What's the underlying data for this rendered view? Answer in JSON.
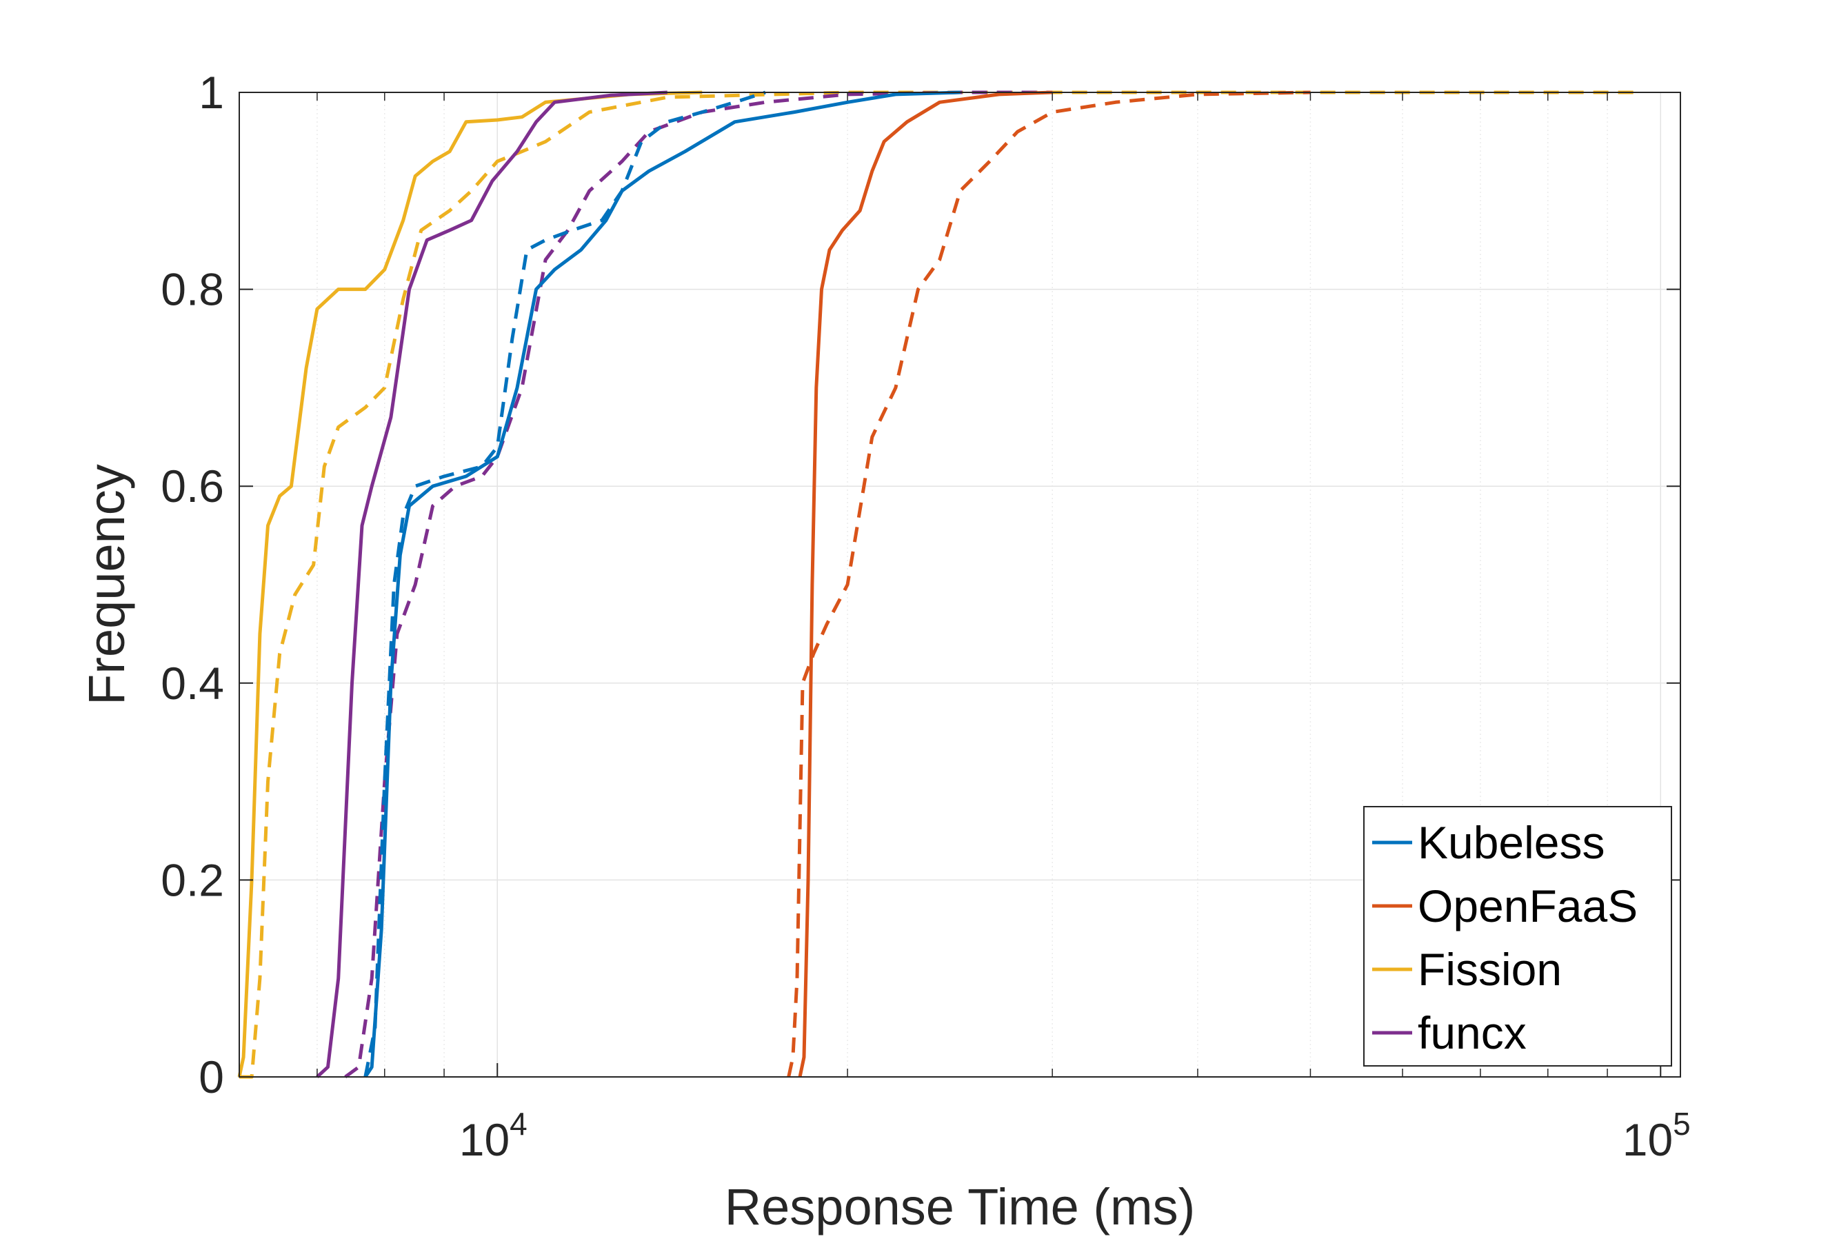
{
  "chart_data": {
    "type": "line",
    "title": "",
    "xlabel": "Response Time (ms)",
    "ylabel": "Frequency",
    "xscale": "log",
    "xlim": [
      6000,
      104000
    ],
    "ylim": [
      0,
      1
    ],
    "grid": true,
    "legend_position": "bottom-right",
    "x_ticks": [
      {
        "value": 10000,
        "base": "10",
        "exp": "4"
      },
      {
        "value": 100000,
        "base": "10",
        "exp": "5"
      }
    ],
    "y_ticks": [
      {
        "value": 0,
        "label": "0"
      },
      {
        "value": 0.2,
        "label": "0.2"
      },
      {
        "value": 0.4,
        "label": "0.4"
      },
      {
        "value": 0.6,
        "label": "0.6"
      },
      {
        "value": 0.8,
        "label": "0.8"
      },
      {
        "value": 1,
        "label": "1"
      }
    ],
    "legend": [
      {
        "name": "Kubeless",
        "color": "#0072BD"
      },
      {
        "name": "OpenFaaS",
        "color": "#D95319"
      },
      {
        "name": "Fission",
        "color": "#EDB120"
      },
      {
        "name": "funcx",
        "color": "#7E2F8E"
      }
    ],
    "series": [
      {
        "name": "Fission",
        "style": "solid",
        "color": "#EDB120",
        "points": [
          [
            6000,
            0
          ],
          [
            6050,
            0.02
          ],
          [
            6150,
            0.2
          ],
          [
            6250,
            0.45
          ],
          [
            6350,
            0.56
          ],
          [
            6500,
            0.59
          ],
          [
            6650,
            0.6
          ],
          [
            6850,
            0.72
          ],
          [
            7000,
            0.78
          ],
          [
            7300,
            0.8
          ],
          [
            7700,
            0.8
          ],
          [
            8000,
            0.82
          ],
          [
            8300,
            0.87
          ],
          [
            8500,
            0.915
          ],
          [
            8800,
            0.93
          ],
          [
            9100,
            0.94
          ],
          [
            9400,
            0.97
          ],
          [
            10000,
            0.972
          ],
          [
            10500,
            0.975
          ],
          [
            11000,
            0.99
          ],
          [
            13000,
            0.998
          ],
          [
            15000,
            1
          ]
        ]
      },
      {
        "name": "Fission",
        "style": "dashed",
        "color": "#EDB120",
        "points": [
          [
            6000,
            0
          ],
          [
            6150,
            0
          ],
          [
            6250,
            0.1
          ],
          [
            6350,
            0.3
          ],
          [
            6500,
            0.43
          ],
          [
            6700,
            0.49
          ],
          [
            6950,
            0.52
          ],
          [
            7100,
            0.62
          ],
          [
            7300,
            0.66
          ],
          [
            7700,
            0.68
          ],
          [
            8000,
            0.7
          ],
          [
            8300,
            0.79
          ],
          [
            8600,
            0.86
          ],
          [
            9100,
            0.88
          ],
          [
            9500,
            0.9
          ],
          [
            10000,
            0.93
          ],
          [
            10500,
            0.94
          ],
          [
            11000,
            0.95
          ],
          [
            12000,
            0.98
          ],
          [
            14000,
            0.995
          ],
          [
            20000,
            1
          ],
          [
            70000,
            1
          ],
          [
            95000,
            1
          ]
        ]
      },
      {
        "name": "funcx",
        "style": "solid",
        "color": "#7E2F8E",
        "points": [
          [
            7000,
            0
          ],
          [
            7150,
            0.01
          ],
          [
            7300,
            0.1
          ],
          [
            7500,
            0.4
          ],
          [
            7650,
            0.56
          ],
          [
            7800,
            0.6
          ],
          [
            8100,
            0.67
          ],
          [
            8400,
            0.8
          ],
          [
            8700,
            0.85
          ],
          [
            9100,
            0.86
          ],
          [
            9500,
            0.87
          ],
          [
            9900,
            0.91
          ],
          [
            10400,
            0.94
          ],
          [
            10800,
            0.97
          ],
          [
            11200,
            0.99
          ],
          [
            12500,
            0.997
          ],
          [
            14000,
            1
          ]
        ]
      },
      {
        "name": "funcx",
        "style": "dashed",
        "color": "#7E2F8E",
        "points": [
          [
            7400,
            0
          ],
          [
            7600,
            0.01
          ],
          [
            7800,
            0.1
          ],
          [
            8000,
            0.3
          ],
          [
            8200,
            0.45
          ],
          [
            8500,
            0.5
          ],
          [
            8800,
            0.58
          ],
          [
            9200,
            0.6
          ],
          [
            9700,
            0.61
          ],
          [
            10000,
            0.63
          ],
          [
            10500,
            0.7
          ],
          [
            11000,
            0.83
          ],
          [
            11500,
            0.86
          ],
          [
            12000,
            0.9
          ],
          [
            12800,
            0.93
          ],
          [
            13500,
            0.96
          ],
          [
            15000,
            0.98
          ],
          [
            17000,
            0.99
          ],
          [
            20000,
            0.998
          ],
          [
            25000,
            1
          ],
          [
            30000,
            1
          ]
        ]
      },
      {
        "name": "Kubeless",
        "style": "solid",
        "color": "#0072BD",
        "points": [
          [
            7700,
            0
          ],
          [
            7800,
            0.01
          ],
          [
            7950,
            0.15
          ],
          [
            8100,
            0.4
          ],
          [
            8250,
            0.53
          ],
          [
            8400,
            0.58
          ],
          [
            8800,
            0.6
          ],
          [
            9400,
            0.61
          ],
          [
            10000,
            0.63
          ],
          [
            10400,
            0.7
          ],
          [
            10800,
            0.8
          ],
          [
            11200,
            0.82
          ],
          [
            11800,
            0.84
          ],
          [
            12400,
            0.87
          ],
          [
            12800,
            0.9
          ],
          [
            13500,
            0.92
          ],
          [
            14500,
            0.94
          ],
          [
            16000,
            0.97
          ],
          [
            18000,
            0.98
          ],
          [
            20000,
            0.99
          ],
          [
            22000,
            0.998
          ],
          [
            25000,
            1
          ]
        ]
      },
      {
        "name": "Kubeless",
        "style": "dashed",
        "color": "#0072BD",
        "points": [
          [
            7700,
            0
          ],
          [
            7850,
            0.05
          ],
          [
            8000,
            0.3
          ],
          [
            8150,
            0.5
          ],
          [
            8300,
            0.57
          ],
          [
            8500,
            0.6
          ],
          [
            9000,
            0.61
          ],
          [
            9700,
            0.62
          ],
          [
            10000,
            0.64
          ],
          [
            10300,
            0.75
          ],
          [
            10600,
            0.84
          ],
          [
            11000,
            0.85
          ],
          [
            11600,
            0.86
          ],
          [
            12300,
            0.87
          ],
          [
            12800,
            0.9
          ],
          [
            13300,
            0.95
          ],
          [
            14000,
            0.97
          ],
          [
            15000,
            0.98
          ],
          [
            16000,
            0.99
          ],
          [
            17000,
            1
          ]
        ]
      },
      {
        "name": "OpenFaaS",
        "style": "solid",
        "color": "#D95319",
        "points": [
          [
            18200,
            0
          ],
          [
            18350,
            0.02
          ],
          [
            18500,
            0.2
          ],
          [
            18650,
            0.5
          ],
          [
            18800,
            0.7
          ],
          [
            19000,
            0.8
          ],
          [
            19300,
            0.84
          ],
          [
            19800,
            0.86
          ],
          [
            20500,
            0.88
          ],
          [
            21000,
            0.92
          ],
          [
            21500,
            0.95
          ],
          [
            22500,
            0.97
          ],
          [
            24000,
            0.99
          ],
          [
            27000,
            0.998
          ],
          [
            30000,
            1
          ]
        ]
      },
      {
        "name": "OpenFaaS",
        "style": "dashed",
        "color": "#D95319",
        "points": [
          [
            17800,
            0
          ],
          [
            17950,
            0.02
          ],
          [
            18100,
            0.1
          ],
          [
            18300,
            0.4
          ],
          [
            18700,
            0.43
          ],
          [
            19200,
            0.46
          ],
          [
            20000,
            0.5
          ],
          [
            21000,
            0.65
          ],
          [
            22000,
            0.7
          ],
          [
            23000,
            0.8
          ],
          [
            24000,
            0.83
          ],
          [
            25000,
            0.9
          ],
          [
            26500,
            0.93
          ],
          [
            28000,
            0.96
          ],
          [
            30000,
            0.98
          ],
          [
            34000,
            0.99
          ],
          [
            40000,
            0.998
          ],
          [
            50000,
            1
          ]
        ]
      }
    ]
  }
}
